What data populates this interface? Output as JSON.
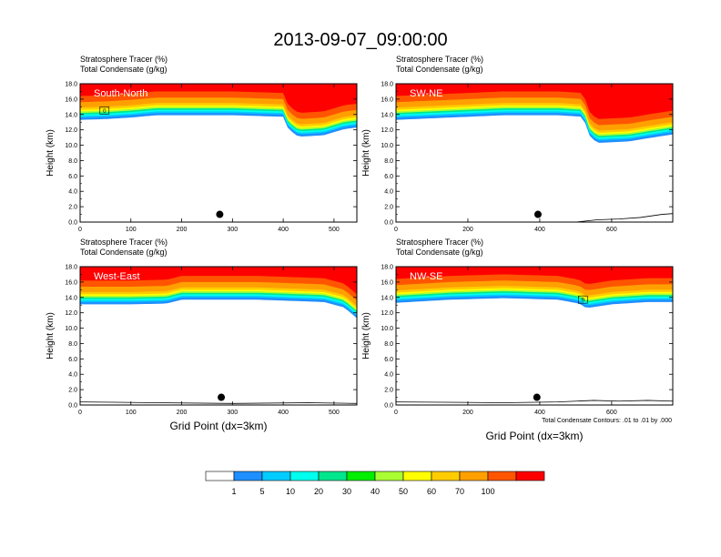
{
  "figure": {
    "title": "2013-09-07_09:00:00",
    "x_axis_title": "Grid Point (dx=3km)",
    "footnote": "Total Condensate Contours: .01 to .01 by .000"
  },
  "chart_data": [
    {
      "type": "heatmap",
      "panel": "South-North",
      "label": "South-North",
      "var_line1": "Stratosphere Tracer   (%)",
      "var_line2": "Total Condensate   (g/kg)",
      "ylabel": "Height (km)",
      "xlabel": "",
      "xlim": [
        0,
        545
      ],
      "ylim": [
        0,
        18
      ],
      "xticks": [
        0,
        100,
        200,
        300,
        400,
        500
      ],
      "yticks": [
        0,
        2,
        4,
        6,
        8,
        10,
        12,
        14,
        16,
        18
      ],
      "ytick_labels": [
        "0.0",
        "2.0",
        "4.0",
        "6.0",
        "8.0",
        "10.0",
        "12.0",
        "14.0",
        "16.0",
        "18.0"
      ],
      "tropopause_km": [
        [
          0,
          14.2
        ],
        [
          50,
          14.3
        ],
        [
          100,
          14.5
        ],
        [
          150,
          14.8
        ],
        [
          200,
          14.8
        ],
        [
          300,
          14.8
        ],
        [
          400,
          14.6
        ],
        [
          410,
          13.0
        ],
        [
          430,
          12.0
        ],
        [
          480,
          12.2
        ],
        [
          520,
          13.0
        ],
        [
          545,
          13.2
        ]
      ],
      "terrain_km": [
        [
          0,
          0.0
        ],
        [
          545,
          0.0
        ]
      ],
      "marker": {
        "x": 275,
        "y": 1.0
      },
      "contour_box": {
        "x": 48,
        "y": 14.4,
        "label": "0"
      }
    },
    {
      "type": "heatmap",
      "panel": "SW-NE",
      "label": "SW-NE",
      "var_line1": "Stratosphere Tracer   (%)",
      "var_line2": "Total Condensate   (g/kg)",
      "ylabel": "Height (km)",
      "xlabel": "",
      "xlim": [
        0,
        770
      ],
      "ylim": [
        0,
        18
      ],
      "xticks": [
        0,
        200,
        400,
        600
      ],
      "yticks": [
        0,
        2,
        4,
        6,
        8,
        10,
        12,
        14,
        16,
        18
      ],
      "ytick_labels": [
        "0.0",
        "2.0",
        "4.0",
        "6.0",
        "8.0",
        "10.0",
        "12.0",
        "14.0",
        "16.0",
        "18.0"
      ],
      "tropopause_km": [
        [
          0,
          14.2
        ],
        [
          100,
          14.4
        ],
        [
          300,
          14.8
        ],
        [
          450,
          14.8
        ],
        [
          520,
          14.6
        ],
        [
          540,
          12.0
        ],
        [
          560,
          11.2
        ],
        [
          650,
          11.4
        ],
        [
          700,
          11.8
        ],
        [
          770,
          12.3
        ]
      ],
      "terrain_km": [
        [
          0,
          0.0
        ],
        [
          500,
          0.0
        ],
        [
          560,
          0.3
        ],
        [
          620,
          0.4
        ],
        [
          680,
          0.6
        ],
        [
          740,
          1.0
        ],
        [
          770,
          1.1
        ]
      ],
      "marker": {
        "x": 395,
        "y": 1.0
      }
    },
    {
      "type": "heatmap",
      "panel": "West-East",
      "label": "West-East",
      "var_line1": "Stratosphere Tracer   (%)",
      "var_line2": "Total Condensate   (g/kg)",
      "ylabel": "Height (km)",
      "xlabel": "",
      "xlim": [
        0,
        545
      ],
      "ylim": [
        0,
        18
      ],
      "xticks": [
        0,
        100,
        200,
        300,
        400,
        500
      ],
      "yticks": [
        0,
        2,
        4,
        6,
        8,
        10,
        12,
        14,
        16,
        18
      ],
      "ytick_labels": [
        "0.0",
        "2.0",
        "4.0",
        "6.0",
        "8.0",
        "10.0",
        "12.0",
        "14.0",
        "16.0",
        "18.0"
      ],
      "tropopause_km": [
        [
          0,
          14.0
        ],
        [
          100,
          14.0
        ],
        [
          170,
          14.1
        ],
        [
          200,
          14.6
        ],
        [
          350,
          14.6
        ],
        [
          480,
          14.3
        ],
        [
          520,
          13.6
        ],
        [
          545,
          12.2
        ]
      ],
      "terrain_km": [
        [
          0,
          0.4
        ],
        [
          150,
          0.3
        ],
        [
          300,
          0.2
        ],
        [
          450,
          0.3
        ],
        [
          545,
          0.2
        ]
      ],
      "marker": {
        "x": 278,
        "y": 1.0
      }
    },
    {
      "type": "heatmap",
      "panel": "NW-SE",
      "label": "NW-SE",
      "var_line1": "Stratosphere Tracer   (%)",
      "var_line2": "Total Condensate   (g/kg)",
      "ylabel": "Height (km)",
      "xlabel": "",
      "xlim": [
        0,
        770
      ],
      "ylim": [
        0,
        18
      ],
      "xticks": [
        0,
        200,
        400,
        600
      ],
      "yticks": [
        0,
        2,
        4,
        6,
        8,
        10,
        12,
        14,
        16,
        18
      ],
      "ytick_labels": [
        "0.0",
        "2.0",
        "4.0",
        "6.0",
        "8.0",
        "10.0",
        "12.0",
        "14.0",
        "16.0",
        "18.0"
      ],
      "tropopause_km": [
        [
          0,
          14.2
        ],
        [
          150,
          14.6
        ],
        [
          300,
          14.8
        ],
        [
          450,
          14.6
        ],
        [
          510,
          14.1
        ],
        [
          530,
          13.5
        ],
        [
          600,
          14.0
        ],
        [
          700,
          14.3
        ],
        [
          770,
          14.3
        ]
      ],
      "terrain_km": [
        [
          0,
          0.4
        ],
        [
          300,
          0.3
        ],
        [
          450,
          0.4
        ],
        [
          550,
          0.6
        ],
        [
          620,
          0.5
        ],
        [
          700,
          0.6
        ],
        [
          770,
          0.5
        ]
      ],
      "marker": {
        "x": 392,
        "y": 1.0
      },
      "contour_box": {
        "x": 520,
        "y": 13.6,
        "label": "0"
      }
    }
  ],
  "colorbar": {
    "labels": [
      "1",
      "5",
      "10",
      "20",
      "30",
      "40",
      "50",
      "60",
      "70",
      "100"
    ],
    "colors": [
      "#ffffff",
      "#1f8fff",
      "#00ccff",
      "#00ffee",
      "#00e68c",
      "#00ee00",
      "#aaff33",
      "#ffff00",
      "#ffcc00",
      "#ffa000",
      "#ff5500",
      "#ff0000"
    ]
  }
}
